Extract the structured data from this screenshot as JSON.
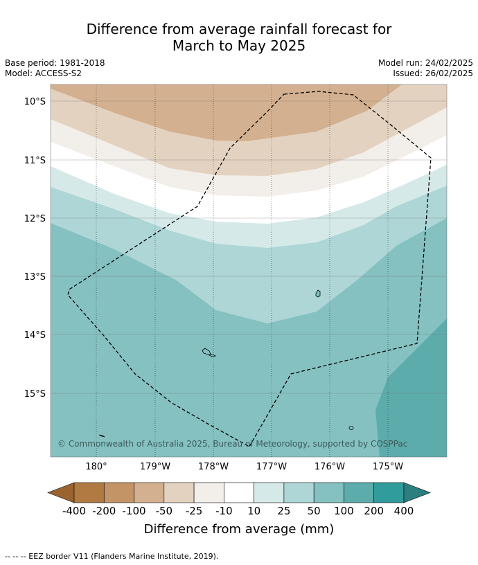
{
  "title_line1": "Difference from average rainfall forecast for",
  "title_line2": "March to May 2025",
  "meta_left": [
    "Base period: 1981-2018",
    "Model: ACCESS-S2"
  ],
  "meta_right": [
    "Model run: 24/02/2025",
    "Issued: 26/02/2025"
  ],
  "lat_ticks": [
    "10°S",
    "11°S",
    "12°S",
    "13°S",
    "14°S",
    "15°S"
  ],
  "lon_ticks": [
    "180°",
    "179°W",
    "178°W",
    "177°W",
    "176°W",
    "175°W"
  ],
  "copyright": "© Commonwealth of Australia 2025, Bureau of Meteorology, supported by COSPPac",
  "colorbar": {
    "title": "Difference from average (mm)",
    "labels": [
      "-400",
      "-200",
      "-100",
      "-50",
      "-25",
      "-10",
      "10",
      "25",
      "50",
      "100",
      "200",
      "400"
    ],
    "colors": [
      "#9a6330",
      "#b07a42",
      "#c29466",
      "#d3b08f",
      "#e4d2c1",
      "#f2eeea",
      "#ffffff",
      "#d6e9e9",
      "#aed6d6",
      "#85c1c1",
      "#5dacac",
      "#319c9c",
      "#2b7f7f"
    ]
  },
  "legend_footer": "--  --  -- EEZ border V11 (Flanders Marine Institute, 2019)."
}
